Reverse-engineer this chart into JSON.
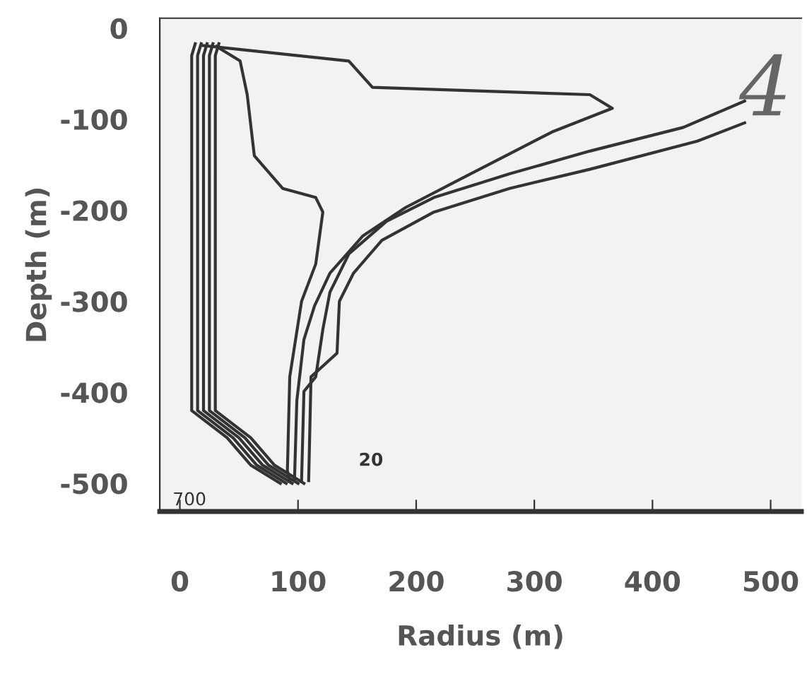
{
  "chart_data": {
    "type": "line",
    "xlabel": "Radius (m)",
    "ylabel": "Depth (m)",
    "xlim": [
      -17,
      526
    ],
    "ylim": [
      -531,
      11
    ],
    "xticks": [
      0,
      100,
      200,
      300,
      400,
      500
    ],
    "yticks": [
      0,
      {
        "value": -100,
        "label": "-100"
      },
      {
        "value": -200,
        "label": "-200"
      },
      {
        "value": -300,
        "label": "-300"
      },
      {
        "value": -400,
        "label": "-400"
      },
      {
        "value": -500,
        "label": "-500"
      }
    ],
    "grid": false,
    "marker": "none",
    "line_style": "solid",
    "annotations": [
      "4",
      "20",
      "700"
    ],
    "series": [
      {
        "color": "#333333",
        "x": [
          19,
          143,
          163,
          347,
          366,
          315,
          246,
          191,
          155,
          127,
          114,
          105,
          99,
          97
        ],
        "values": [
          -19,
          -36,
          -65,
          -73,
          -88,
          -114,
          -160,
          -197,
          -228,
          -269,
          -305,
          -342,
          -409,
          -497
        ]
      },
      {
        "color": "#333333",
        "x": [
          31,
          51,
          57,
          63,
          87,
          115,
          121,
          115,
          103,
          93,
          91,
          93
        ],
        "values": [
          -20,
          -36,
          -73,
          -140,
          -176,
          -186,
          -202,
          -259,
          -300,
          -383,
          -486,
          -497
        ]
      },
      {
        "color": "#333333",
        "x": [
          478,
          426,
          347,
          279,
          215,
          175,
          143,
          127,
          121,
          115,
          105,
          103
        ],
        "values": [
          -80,
          -109,
          -135,
          -160,
          -186,
          -212,
          -248,
          -290,
          -331,
          -383,
          -399,
          -497
        ]
      },
      {
        "color": "#333333",
        "x": [
          478,
          438,
          347,
          279,
          215,
          171,
          147,
          135,
          133,
          111,
          109
        ],
        "values": [
          -104,
          -124,
          -155,
          -176,
          -202,
          -233,
          -269,
          -300,
          -357,
          -383,
          -497
        ]
      },
      {
        "color": "#333333",
        "x": [
          13,
          10,
          10,
          40,
          60,
          85
        ],
        "values": [
          -17,
          -30,
          -420,
          -450,
          -480,
          -500
        ]
      },
      {
        "color": "#333333",
        "x": [
          18,
          15,
          15,
          45,
          65,
          90
        ],
        "values": [
          -17,
          -30,
          -420,
          -450,
          -480,
          -500
        ]
      },
      {
        "color": "#333333",
        "x": [
          23,
          20,
          20,
          50,
          70,
          95
        ],
        "values": [
          -17,
          -30,
          -420,
          -450,
          -480,
          -500
        ]
      },
      {
        "color": "#333333",
        "x": [
          28,
          25,
          25,
          55,
          75,
          100
        ],
        "values": [
          -17,
          -30,
          -420,
          -450,
          -480,
          -500
        ]
      },
      {
        "color": "#333333",
        "x": [
          33,
          30,
          30,
          60,
          80,
          105
        ],
        "values": [
          -17,
          -30,
          -420,
          -450,
          -480,
          -500
        ]
      }
    ]
  }
}
